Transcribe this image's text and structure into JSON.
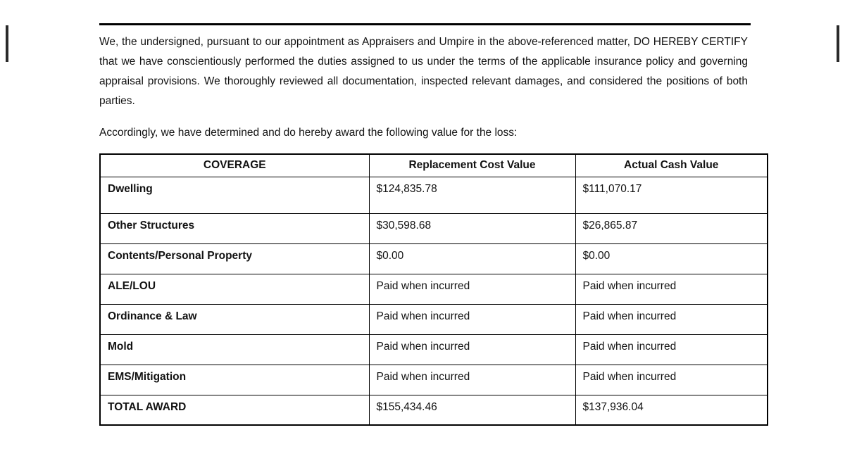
{
  "colors": {
    "page_background": "#ffffff",
    "text": "#121212",
    "table_border": "#000000"
  },
  "document": {
    "certification_paragraph": "We, the undersigned, pursuant to our appointment as Appraisers and Umpire in the above-referenced matter, DO HEREBY CERTIFY that we have conscientiously performed the duties assigned to us under the terms of the applicable insurance policy and governing appraisal provisions. We thoroughly reviewed all documentation, inspected relevant damages, and considered the positions of both parties.",
    "award_intro_paragraph": "Accordingly, we have determined and do hereby award the following value for the loss:",
    "table": {
      "headers": [
        "COVERAGE",
        "Replacement Cost Value",
        "Actual Cash Value"
      ],
      "rows": [
        {
          "coverage": "Dwelling",
          "rcv": "$124,835.78",
          "acv": "$111,070.17"
        },
        {
          "coverage": "Other Structures",
          "rcv": "$30,598.68",
          "acv": "$26,865.87"
        },
        {
          "coverage": "Contents/Personal Property",
          "rcv": "$0.00",
          "acv": "$0.00"
        },
        {
          "coverage": "ALE/LOU",
          "rcv": "Paid when incurred",
          "acv": "Paid when incurred"
        },
        {
          "coverage": "Ordinance & Law",
          "rcv": "Paid when incurred",
          "acv": "Paid when incurred"
        },
        {
          "coverage": "Mold",
          "rcv": "Paid when incurred",
          "acv": "Paid when incurred"
        },
        {
          "coverage": "EMS/Mitigation",
          "rcv": "Paid when incurred",
          "acv": "Paid when incurred"
        },
        {
          "coverage": "TOTAL AWARD",
          "rcv": "$155,434.46",
          "acv": "$137,936.04"
        }
      ]
    }
  }
}
